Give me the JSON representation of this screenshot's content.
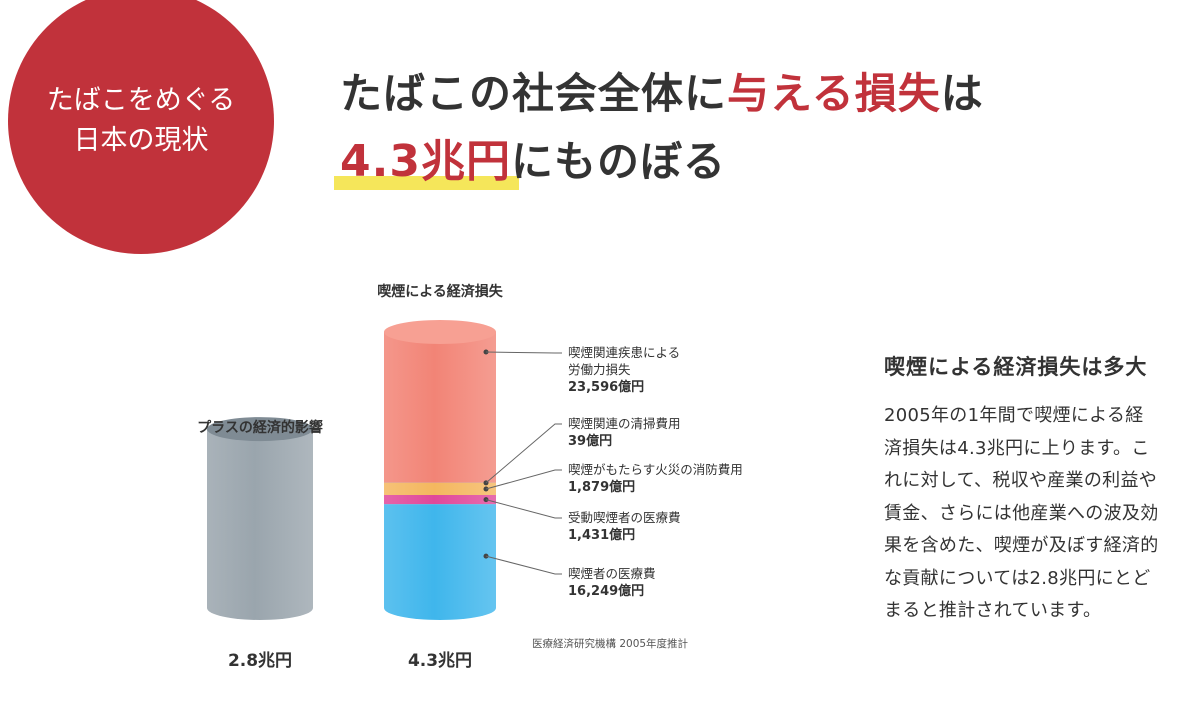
{
  "badge": {
    "line1": "たばこをめぐる",
    "line2": "日本の現状"
  },
  "headline": {
    "line1_part1": "たばこの社会全体に",
    "line1_part2": "与える損失",
    "line1_part3": "は",
    "line2_amount": "4.3兆円",
    "line2_rest": "にものぼる"
  },
  "chart_data": {
    "type": "bar",
    "title_plus": "プラスの経済的影響",
    "title_loss": "喫煙による経済損失",
    "plus": {
      "value_label": "2.8兆円",
      "value": 28000,
      "color": "#9aa5ad"
    },
    "loss": {
      "value_label": "4.3兆円",
      "total": 43194,
      "segments": [
        {
          "label_lines": [
            "喫煙者の医療費"
          ],
          "amount_label": "16,249億円",
          "value": 16249,
          "color": "#3fb6ec"
        },
        {
          "label_lines": [
            "受動喫煙者の医療費"
          ],
          "amount_label": "1,431億円",
          "value": 1431,
          "color": "#e0489a"
        },
        {
          "label_lines": [
            "喫煙がもたらす火災の消防費用"
          ],
          "amount_label": "1,879億円",
          "value": 1879,
          "color": "#f4b75f"
        },
        {
          "label_lines": [
            "喫煙関連の清掃費用"
          ],
          "amount_label": "39億円",
          "value": 39,
          "color": "#8cc85a"
        },
        {
          "label_lines": [
            "喫煙関連疾患による",
            "労働力損失"
          ],
          "amount_label": "23,596億円",
          "value": 23596,
          "color": "#f28476"
        }
      ]
    },
    "source": "医療経済研究機構 2005年度推計",
    "unit": "億円"
  },
  "side": {
    "title": "喫煙による経済損失は多大",
    "body_lines": [
      "2005年の1年間で喫煙による経",
      "済損失は4.3兆円に上ります。こ",
      "れに対して、税収や産業の利益や",
      "賃金、さらには他産業への波及効",
      "果を含めた、喫煙が及ぼす経済的",
      "な貢献については2.8兆円にとど",
      "まると推計されています。"
    ]
  }
}
